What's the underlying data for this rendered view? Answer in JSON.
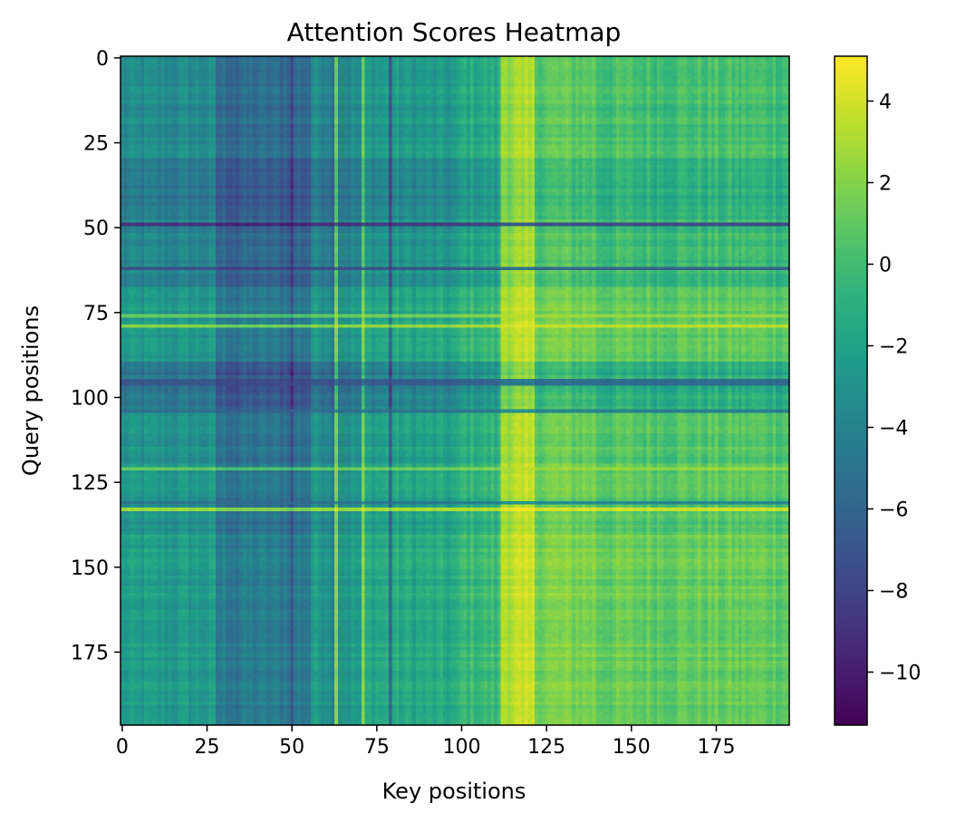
{
  "chart_data": {
    "type": "heatmap",
    "title": "Attention Scores Heatmap",
    "xlabel": "Key positions",
    "ylabel": "Query positions",
    "x_ticks": [
      0,
      25,
      50,
      75,
      100,
      125,
      150,
      175
    ],
    "y_ticks": [
      0,
      25,
      50,
      75,
      100,
      125,
      150,
      175
    ],
    "x_range": [
      0,
      197
    ],
    "y_range": [
      0,
      197
    ],
    "n_rows": 197,
    "n_cols": 197,
    "colormap": "viridis",
    "colorbar": {
      "vmin": -11.3,
      "vmax": 5.1,
      "ticks": [
        4,
        2,
        0,
        -2,
        -4,
        -6,
        -8,
        -10
      ],
      "tick_labels": [
        "4",
        "2",
        "0",
        "−2",
        "−4",
        "−6",
        "−8",
        "−10"
      ]
    },
    "structure": {
      "column_bias_segments": [
        [
          0,
          28,
          -3.2
        ],
        [
          28,
          56,
          -5.2
        ],
        [
          56,
          72,
          -3.2
        ],
        [
          72,
          100,
          -2.2
        ],
        [
          100,
          112,
          -1.0
        ],
        [
          112,
          122,
          3.0
        ],
        [
          122,
          140,
          1.2
        ],
        [
          140,
          197,
          0.5
        ]
      ],
      "row_shift_segments": [
        [
          0,
          30,
          -0.4
        ],
        [
          30,
          48,
          -1.6
        ],
        [
          48,
          68,
          -0.8
        ],
        [
          68,
          90,
          0.6
        ],
        [
          90,
          104,
          -1.8
        ],
        [
          104,
          140,
          0.2
        ],
        [
          140,
          197,
          0.8
        ]
      ],
      "dark_columns": [
        {
          "index": 50,
          "value": -7.5
        },
        {
          "index": 79,
          "value": -6.5
        },
        {
          "index": 34,
          "value": -6.0
        },
        {
          "index": 62,
          "value": -5.0
        }
      ],
      "bright_columns": [
        {
          "index": 117,
          "value": 3.5
        },
        {
          "index": 118,
          "value": 3.0
        },
        {
          "index": 63,
          "value": 1.5
        },
        {
          "index": 71,
          "value": 1.5
        }
      ],
      "dark_rows": [
        {
          "index": 49,
          "value": -8.5
        },
        {
          "index": 62,
          "value": -7.0
        },
        {
          "index": 95,
          "value": -6.5
        },
        {
          "index": 96,
          "value": -6.5
        },
        {
          "index": 104,
          "value": -5.0
        },
        {
          "index": 131,
          "value": -4.5
        }
      ],
      "bright_rows": [
        {
          "index": 79,
          "value": 2.5
        },
        {
          "index": 133,
          "value": 3.0
        },
        {
          "index": 121,
          "value": 1.5
        },
        {
          "index": 76,
          "value": 1.5
        }
      ]
    }
  }
}
